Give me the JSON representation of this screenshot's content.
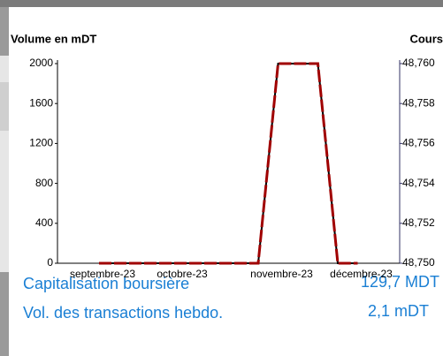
{
  "chart_data": {
    "type": "line",
    "ylabel": "Volume en mDT",
    "y2label": "Cours",
    "categories": [
      "septembre-23",
      null,
      null,
      null,
      "octobre-23",
      null,
      null,
      null,
      null,
      "novembre-23",
      null,
      null,
      null,
      "décembre-23"
    ],
    "series": [
      {
        "name": "Volume",
        "color": "#000000",
        "values": [
          0,
          0,
          0,
          0,
          0,
          0,
          0,
          0,
          0,
          2000,
          2000,
          2000,
          0,
          0
        ]
      },
      {
        "name": "Cours",
        "color": "#a00000",
        "axis": "y2",
        "values": [
          48.75,
          48.75,
          48.75,
          48.75,
          48.75,
          48.75,
          48.75,
          48.75,
          48.75,
          48.76,
          48.76,
          48.76,
          48.75,
          48.75
        ]
      }
    ],
    "ylim": [
      0,
      2000
    ],
    "yticks": [
      0,
      400,
      800,
      1200,
      1600,
      2000
    ],
    "y2lim": [
      48.75,
      48.76
    ],
    "y2ticks": [
      {
        "value": 48.75,
        "label": "48,750"
      },
      {
        "value": 48.752,
        "label": "48,752"
      },
      {
        "value": 48.754,
        "label": "48,754"
      },
      {
        "value": 48.756,
        "label": "48,756"
      },
      {
        "value": 48.758,
        "label": "48,758"
      },
      {
        "value": 48.76,
        "label": "48,760"
      }
    ]
  },
  "indicators": [
    {
      "label": "Capitalisation boursière",
      "value": "129,7 MDT"
    },
    {
      "label": "Vol. des transactions hebdo.",
      "value": "2,1 mDT"
    }
  ]
}
